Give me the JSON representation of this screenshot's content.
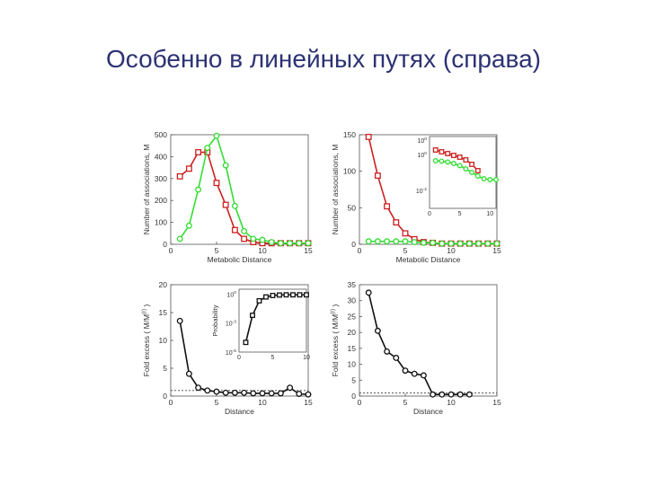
{
  "slide": {
    "title": "Особенно в линейных путях (справа)"
  },
  "colors": {
    "red": "#cc2222",
    "green": "#33dd33",
    "black": "#111111"
  },
  "chart_data": [
    {
      "id": "a",
      "type": "line",
      "xlabel": "Metabolic Distance",
      "ylabel": "Number of associations, M",
      "xlim": [
        0,
        15
      ],
      "ylim": [
        0,
        500
      ],
      "xticks": [
        0,
        5,
        10,
        15
      ],
      "yticks": [
        0,
        100,
        200,
        300,
        400,
        500
      ],
      "series": [
        {
          "color": "red",
          "marker": "square",
          "x": [
            1,
            2,
            3,
            4,
            5,
            6,
            7,
            8,
            9,
            10,
            11,
            12,
            13,
            14,
            15
          ],
          "y": [
            310,
            345,
            420,
            420,
            280,
            180,
            65,
            25,
            10,
            5,
            5,
            5,
            5,
            5,
            5
          ]
        },
        {
          "color": "green",
          "marker": "circle",
          "x": [
            1,
            2,
            3,
            4,
            5,
            6,
            7,
            8,
            9,
            10,
            11,
            12,
            13,
            14,
            15
          ],
          "y": [
            25,
            85,
            250,
            440,
            495,
            360,
            175,
            60,
            25,
            20,
            10,
            5,
            5,
            5,
            5
          ]
        }
      ]
    },
    {
      "id": "b",
      "type": "line",
      "xlabel": "Metabolic Distance",
      "ylabel": "Number of associations, M",
      "xlim": [
        0,
        15
      ],
      "ylim": [
        0,
        150
      ],
      "xticks": [
        0,
        5,
        10,
        15
      ],
      "yticks": [
        0,
        50,
        100,
        150
      ],
      "series": [
        {
          "color": "red",
          "marker": "square",
          "x": [
            1,
            2,
            3,
            4,
            5,
            6,
            7,
            8,
            9,
            10,
            11,
            12,
            13,
            14,
            15
          ],
          "y": [
            147,
            94,
            52,
            30,
            15,
            7,
            3,
            2,
            1,
            1,
            1,
            1,
            1,
            1,
            1
          ]
        },
        {
          "color": "green",
          "marker": "circle",
          "x": [
            1,
            2,
            3,
            4,
            5,
            6,
            7,
            8,
            9,
            10,
            11,
            12,
            13,
            14,
            15
          ],
          "y": [
            4,
            4,
            4,
            4,
            4,
            3,
            2,
            2,
            1,
            1,
            1,
            1,
            1,
            1,
            1
          ]
        }
      ],
      "inset": {
        "type": "line",
        "yscale": "log",
        "xlim": [
          0,
          11
        ],
        "ylim": [
          -3,
          1
        ],
        "xticks": [
          0,
          5,
          10
        ],
        "ytick_values": [
          0,
          -2
        ],
        "ytick_labels": [
          {
            "base": "10",
            "exp": "0"
          },
          {
            "base": "10",
            "exp": "-2"
          }
        ],
        "top_label": {
          "base": "10",
          "exp": "0"
        },
        "series": [
          {
            "color": "red",
            "marker": "square",
            "x": [
              1,
              2,
              3,
              4,
              5,
              6,
              7,
              8
            ],
            "y": [
              0.25,
              0.15,
              0.05,
              -0.05,
              -0.15,
              -0.3,
              -0.55,
              -0.9
            ]
          },
          {
            "color": "green",
            "marker": "circle",
            "x": [
              1,
              2,
              3,
              4,
              5,
              6,
              7,
              8,
              9,
              10,
              11
            ],
            "y": [
              -0.35,
              -0.37,
              -0.42,
              -0.5,
              -0.62,
              -0.8,
              -1.0,
              -1.2,
              -1.35,
              -1.4,
              -1.4
            ]
          }
        ]
      }
    },
    {
      "id": "c",
      "type": "line",
      "xlabel": "Distance",
      "ylabel": "Fold excess ( M/M(r) )",
      "xlim": [
        0,
        15
      ],
      "ylim": [
        0,
        20
      ],
      "xticks": [
        0,
        5,
        10,
        15
      ],
      "yticks": [
        0,
        5,
        10,
        15,
        20
      ],
      "baseline": 1,
      "series": [
        {
          "color": "black",
          "marker": "circle",
          "x": [
            1,
            2,
            3,
            4,
            5,
            6,
            7,
            8,
            9,
            10,
            11,
            12,
            13,
            14,
            15
          ],
          "y": [
            13.5,
            4,
            1.5,
            1,
            0.8,
            0.6,
            0.6,
            0.6,
            0.5,
            0.5,
            0.5,
            0.5,
            1.5,
            0.4,
            0.3
          ]
        }
      ],
      "inset": {
        "type": "line",
        "yscale": "log",
        "ylabel": "Probability",
        "xlim": [
          0,
          10
        ],
        "ylim": [
          -6,
          0.5
        ],
        "xticks": [
          0,
          5,
          10
        ],
        "ytick_values": [
          0,
          -3,
          -6
        ],
        "ytick_labels": [
          {
            "base": "10",
            "exp": "0"
          },
          {
            "base": "10",
            "exp": "-3"
          },
          {
            "base": "10",
            "exp": "-6"
          }
        ],
        "series": [
          {
            "color": "black",
            "marker": "square",
            "x": [
              1,
              2,
              3,
              4,
              5,
              6,
              7,
              8,
              9,
              10
            ],
            "y": [
              -5,
              -2.2,
              -0.7,
              -0.3,
              -0.15,
              -0.1,
              -0.08,
              -0.08,
              -0.08,
              -0.08
            ]
          }
        ]
      }
    },
    {
      "id": "d",
      "type": "line",
      "xlabel": "Distance",
      "ylabel": "Fold excess ( M/M(r) )",
      "xlim": [
        0,
        15
      ],
      "ylim": [
        0,
        35
      ],
      "xticks": [
        0,
        5,
        10,
        15
      ],
      "yticks": [
        0,
        5,
        10,
        15,
        20,
        25,
        30,
        35
      ],
      "baseline": 1,
      "series": [
        {
          "color": "black",
          "marker": "circle",
          "x": [
            1,
            2,
            3,
            4,
            5,
            6,
            7,
            8,
            9,
            10,
            11,
            12
          ],
          "y": [
            32.5,
            20.5,
            14,
            12,
            8,
            7,
            6.5,
            0.5,
            0.5,
            0.5,
            0.5,
            0.5
          ]
        }
      ]
    }
  ]
}
